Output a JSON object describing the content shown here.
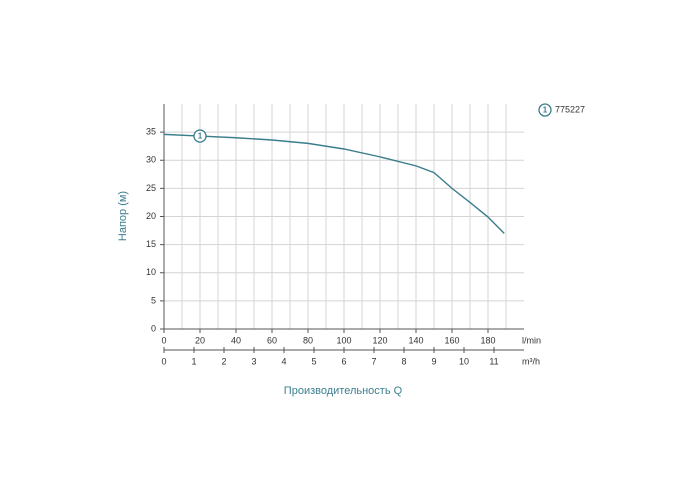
{
  "chart_data": {
    "type": "line",
    "y_label": "Напор (м)",
    "x_label": "Производительность Q",
    "x_unit": "l/min",
    "x2_unit": "m³/h",
    "x": [
      0,
      20,
      40,
      60,
      80,
      100,
      120,
      140,
      150,
      160,
      170,
      180,
      189
    ],
    "series": [
      {
        "name": "775227",
        "label": "1",
        "color": "#3a7d8c",
        "values": [
          34.6,
          34.3,
          34.0,
          33.6,
          33.0,
          32.0,
          30.6,
          29.0,
          27.8,
          25.0,
          22.5,
          19.9,
          17.0
        ]
      }
    ],
    "xlim": [
      0,
      200
    ],
    "xticks": [
      0,
      20,
      40,
      60,
      80,
      100,
      120,
      140,
      160,
      180
    ],
    "xgrid": [
      10,
      20,
      30,
      40,
      50,
      60,
      70,
      80,
      90,
      100,
      110,
      120,
      130,
      140,
      150,
      160,
      170,
      180,
      190
    ],
    "x2lim": [
      0,
      12
    ],
    "x2ticks": [
      0,
      1,
      2,
      3,
      4,
      5,
      6,
      7,
      8,
      9,
      10,
      11
    ],
    "ylim": [
      0,
      40
    ],
    "yticks": [
      0,
      5,
      10,
      15,
      20,
      25,
      30,
      35
    ],
    "grid": true
  }
}
